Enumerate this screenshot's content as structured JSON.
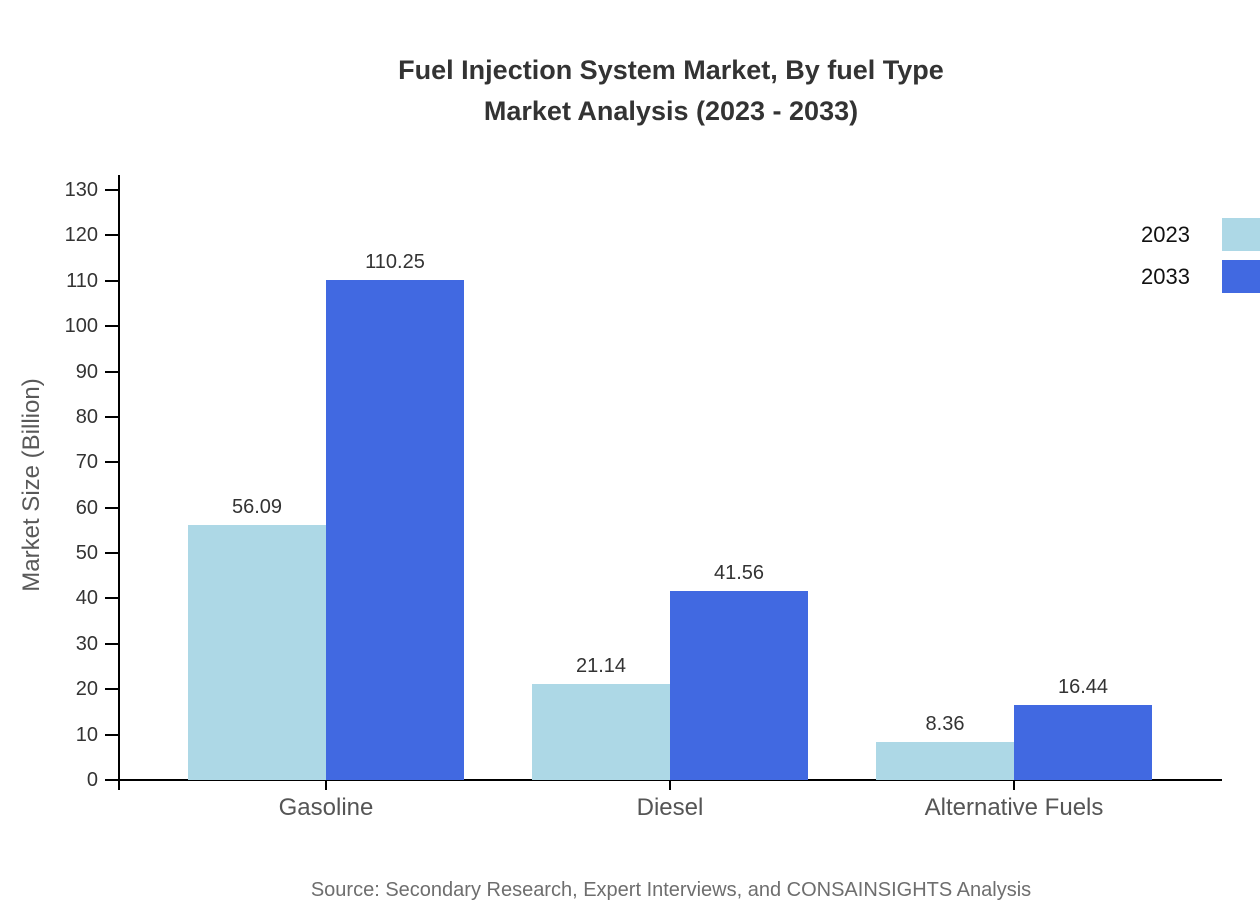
{
  "title": {
    "line1": "Fuel Injection System Market, By fuel Type",
    "line2": "Market Analysis (2023 - 2033)"
  },
  "chart_data": {
    "type": "bar",
    "categories": [
      "Gasoline",
      "Diesel",
      "Alternative Fuels"
    ],
    "series": [
      {
        "name": "2023",
        "color": "#ADD8E6",
        "values": [
          56.09,
          21.14,
          8.36
        ]
      },
      {
        "name": "2033",
        "color": "#4169E1",
        "values": [
          110.25,
          41.56,
          16.44
        ]
      }
    ],
    "value_labels": [
      "56.09",
      "110.25",
      "21.14",
      "41.56",
      "8.36",
      "16.44"
    ],
    "title": "Fuel Injection System Market, By fuel Type Market Analysis (2023 - 2033)",
    "xlabel": "",
    "ylabel": "Market Size (Billion)",
    "ylim": [
      0,
      130
    ],
    "ytick_step": 10,
    "grid": false,
    "legend_position": "top-right",
    "bar_label_format": "0.00"
  },
  "source": "Source: Secondary Research, Expert Interviews, and CONSAINSIGHTS Analysis",
  "colors": {
    "series_2023": "#ADD8E6",
    "series_2033": "#4169E1",
    "axis": "#000000",
    "title_text": "#333333",
    "tick_text": "#333333",
    "category_text": "#555555",
    "source_text": "#6e6e6e"
  }
}
